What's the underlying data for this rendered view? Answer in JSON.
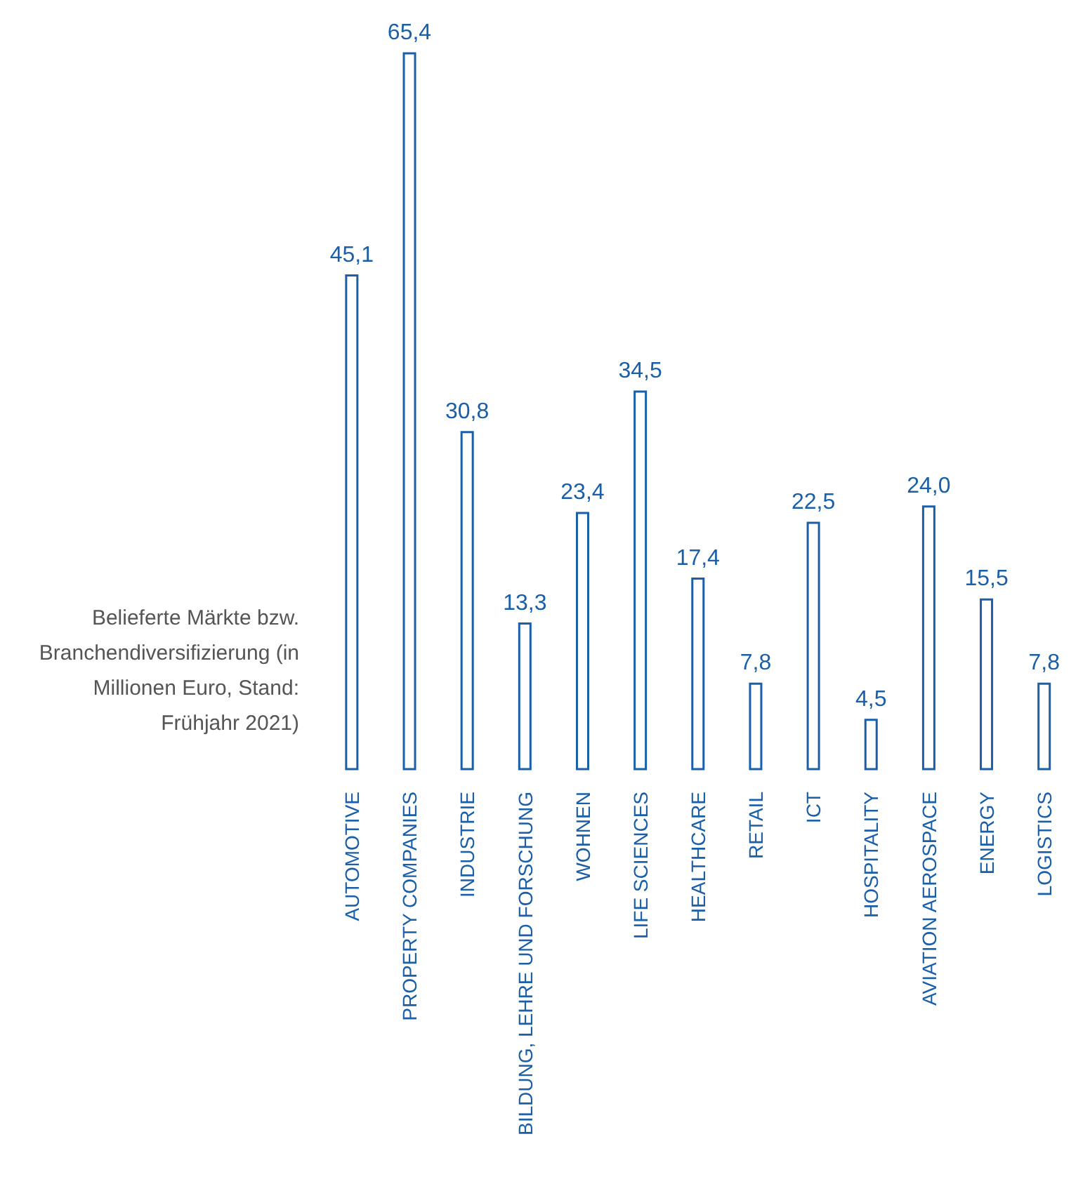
{
  "chart_data": {
    "type": "bar",
    "categories": [
      "AUTOMOTIVE",
      "PROPERTY COMPANIES",
      "INDUSTRIE",
      "BILDUNG, LEHRE UND FORSCHUNG",
      "WOHNEN",
      "LIFE SCIENCES",
      "HEALTHCARE",
      "RETAIL",
      "ICT",
      "HOSPITALITY",
      "AVIATION AEROSPACE",
      "ENERGY",
      "LOGISTICS"
    ],
    "values": [
      45.1,
      65.4,
      30.8,
      13.3,
      23.4,
      34.5,
      17.4,
      7.8,
      22.5,
      4.5,
      24.0,
      15.5,
      7.8
    ],
    "value_labels": [
      "45,1",
      "65,4",
      "30,8",
      "13,3",
      "23,4",
      "34,5",
      "17,4",
      "7,8",
      "22,5",
      "4,5",
      "24,0",
      "15,5",
      "7,8"
    ],
    "color": "#1a5fa8",
    "annotations": [
      "Belieferte Märkte bzw. Branchendiversifizierung (in Millionen Euro, Stand: Frühjahr 2021)"
    ]
  }
}
